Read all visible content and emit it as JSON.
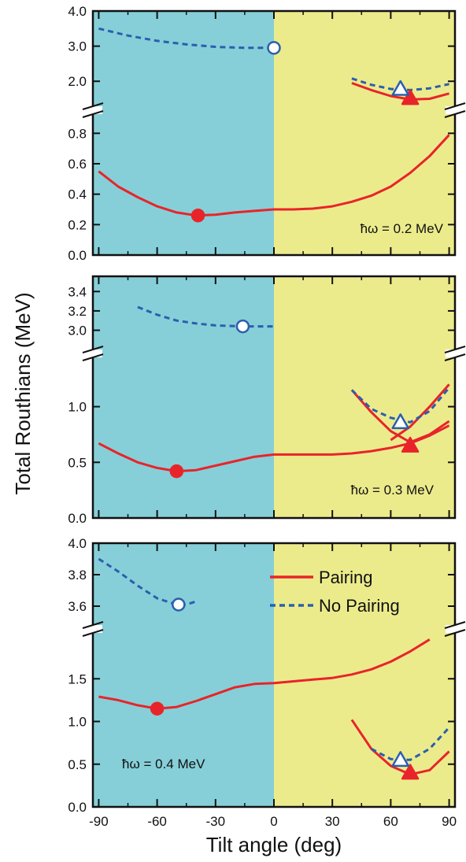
{
  "chart_data": {
    "type": "line",
    "ylabel": "Total Routhians (MeV)",
    "xlabel": "Tilt angle (deg)",
    "x_ticks": [
      "-90",
      "-60",
      "-30",
      "0",
      "30",
      "60",
      "90"
    ],
    "xlim": [
      -93,
      93
    ],
    "regions": [
      {
        "x_from": -93,
        "x_to": 0,
        "color": "#86cfd8"
      },
      {
        "x_from": 0,
        "x_to": 93,
        "color": "#eceb8c"
      }
    ],
    "colors": {
      "pairing": "#e8242a",
      "no_pairing": "#2b5fae"
    },
    "legend": {
      "placement": "top-right (bottom panel)",
      "entries": [
        "Pairing",
        "No Pairing"
      ]
    },
    "panels": [
      {
        "annotation": "ħω = 0.2 MeV",
        "upper": {
          "ylim": [
            1.4,
            4.0
          ],
          "ticks": [
            "4.0",
            "3.0",
            "2.0"
          ],
          "tick_values": [
            4.0,
            3.0,
            2.0
          ]
        },
        "lower": {
          "ylim": [
            0.0,
            0.9
          ],
          "ticks": [
            "0.8",
            "0.6",
            "0.4",
            "0.2",
            "0.0"
          ],
          "tick_values": [
            0.8,
            0.6,
            0.4,
            0.2,
            0.0
          ]
        },
        "series": [
          {
            "style": "pairing",
            "segment": "lower",
            "x": [
              -90,
              -80,
              -70,
              -60,
              -50,
              -40,
              -30,
              -20,
              -10,
              0,
              10,
              20,
              30,
              40,
              50,
              60,
              70,
              80,
              90
            ],
            "y": [
              0.55,
              0.45,
              0.38,
              0.32,
              0.28,
              0.26,
              0.265,
              0.28,
              0.29,
              0.3,
              0.3,
              0.305,
              0.32,
              0.35,
              0.39,
              0.45,
              0.54,
              0.65,
              0.79
            ]
          },
          {
            "style": "pairing",
            "segment": "upper",
            "x": [
              40,
              50,
              60,
              70,
              80,
              90
            ],
            "y": [
              1.95,
              1.75,
              1.58,
              1.48,
              1.5,
              1.65
            ]
          },
          {
            "style": "no_pairing",
            "segment": "upper",
            "x": [
              -90,
              -75,
              -60,
              -45,
              -30,
              -15,
              0
            ],
            "y": [
              3.5,
              3.3,
              3.15,
              3.05,
              2.98,
              2.95,
              2.95
            ]
          },
          {
            "style": "no_pairing",
            "segment": "upper",
            "x": [
              40,
              50,
              60,
              70,
              80,
              90
            ],
            "y": [
              2.08,
              1.9,
              1.78,
              1.75,
              1.8,
              1.92
            ]
          }
        ],
        "markers": [
          {
            "shape": "circle",
            "filled": true,
            "style": "pairing",
            "segment": "lower",
            "x": -39,
            "y": 0.26
          },
          {
            "shape": "triangle",
            "filled": true,
            "style": "pairing",
            "segment": "upper",
            "x": 70,
            "y": 1.52
          },
          {
            "shape": "circle",
            "filled": false,
            "style": "no_pairing",
            "segment": "upper",
            "x": 0,
            "y": 2.95
          },
          {
            "shape": "triangle",
            "filled": false,
            "style": "no_pairing",
            "segment": "upper",
            "x": 65,
            "y": 1.78
          }
        ]
      },
      {
        "annotation": "ħω = 0.3 MeV",
        "upper": {
          "ylim": [
            2.85,
            3.5
          ],
          "ticks": [
            "3.4",
            "3.2",
            "3.0"
          ],
          "tick_values": [
            3.4,
            3.2,
            3.0
          ]
        },
        "lower": {
          "ylim": [
            0.0,
            1.4
          ],
          "ticks": [
            "1.0",
            "0.5",
            "0.0"
          ],
          "tick_values": [
            1.0,
            0.5,
            0.0
          ]
        },
        "series": [
          {
            "style": "pairing",
            "segment": "lower",
            "x": [
              -90,
              -80,
              -70,
              -60,
              -50,
              -40,
              -30,
              -20,
              -10,
              0,
              10,
              20,
              30,
              40,
              50,
              60,
              70,
              80,
              90
            ],
            "y": [
              0.67,
              0.58,
              0.5,
              0.45,
              0.42,
              0.43,
              0.47,
              0.51,
              0.55,
              0.57,
              0.57,
              0.57,
              0.57,
              0.58,
              0.6,
              0.63,
              0.67,
              0.74,
              0.83
            ]
          },
          {
            "style": "pairing",
            "segment": "lower",
            "x": [
              40,
              50,
              60,
              70,
              80,
              90
            ],
            "y": [
              1.15,
              0.95,
              0.78,
              0.68,
              0.75,
              0.87
            ]
          },
          {
            "style": "pairing",
            "segment": "lower",
            "x": [
              60,
              70,
              80,
              90
            ],
            "y": [
              0.7,
              0.82,
              1.0,
              1.2
            ]
          },
          {
            "style": "no_pairing",
            "segment": "upper",
            "x": [
              -70,
              -60,
              -50,
              -40,
              -30,
              -15,
              0
            ],
            "y": [
              3.24,
              3.16,
              3.1,
              3.07,
              3.05,
              3.04,
              3.04
            ]
          },
          {
            "style": "no_pairing",
            "segment": "lower",
            "x": [
              40,
              50,
              60,
              70,
              80,
              90
            ],
            "y": [
              1.15,
              0.98,
              0.9,
              0.86,
              0.96,
              1.17
            ]
          }
        ],
        "markers": [
          {
            "shape": "circle",
            "filled": true,
            "style": "pairing",
            "segment": "lower",
            "x": -50,
            "y": 0.42
          },
          {
            "shape": "triangle",
            "filled": true,
            "style": "pairing",
            "segment": "lower",
            "x": 70,
            "y": 0.65
          },
          {
            "shape": "circle",
            "filled": false,
            "style": "no_pairing",
            "segment": "upper",
            "x": -16,
            "y": 3.04
          },
          {
            "shape": "triangle",
            "filled": false,
            "style": "no_pairing",
            "segment": "lower",
            "x": 65,
            "y": 0.86
          }
        ]
      },
      {
        "annotation": "ħω = 0.4 MeV",
        "upper": {
          "ylim": [
            3.5,
            4.0
          ],
          "ticks": [
            "4.0",
            "3.8",
            "3.6"
          ],
          "tick_values": [
            4.0,
            3.8,
            3.6
          ]
        },
        "lower": {
          "ylim": [
            0.0,
            2.0
          ],
          "ticks": [
            "1.5",
            "1.0",
            "0.5",
            "0.0"
          ],
          "tick_values": [
            1.5,
            1.0,
            0.5,
            0.0
          ]
        },
        "series": [
          {
            "style": "pairing",
            "segment": "lower",
            "x": [
              -90,
              -80,
              -70,
              -60,
              -50,
              -40,
              -30,
              -20,
              -10,
              0,
              10,
              20,
              30,
              40,
              50,
              60,
              70,
              80
            ],
            "y": [
              1.29,
              1.25,
              1.19,
              1.15,
              1.17,
              1.24,
              1.32,
              1.4,
              1.44,
              1.45,
              1.47,
              1.49,
              1.51,
              1.55,
              1.61,
              1.7,
              1.82,
              1.96
            ]
          },
          {
            "style": "pairing",
            "segment": "lower",
            "x": [
              40,
              50,
              60,
              70,
              80,
              90
            ],
            "y": [
              1.02,
              0.68,
              0.48,
              0.38,
              0.43,
              0.65
            ]
          },
          {
            "style": "no_pairing",
            "segment": "upper",
            "x": [
              -90,
              -80,
              -70,
              -60,
              -50,
              -45,
              -40
            ],
            "y": [
              3.9,
              3.82,
              3.73,
              3.65,
              3.61,
              3.61,
              3.63
            ]
          },
          {
            "style": "no_pairing",
            "segment": "lower",
            "x": [
              50,
              60,
              70,
              80,
              90
            ],
            "y": [
              0.68,
              0.56,
              0.55,
              0.68,
              0.93
            ]
          }
        ],
        "markers": [
          {
            "shape": "circle",
            "filled": true,
            "style": "pairing",
            "segment": "lower",
            "x": -60,
            "y": 1.15
          },
          {
            "shape": "triangle",
            "filled": true,
            "style": "pairing",
            "segment": "lower",
            "x": 70,
            "y": 0.4
          },
          {
            "shape": "circle",
            "filled": false,
            "style": "no_pairing",
            "segment": "upper",
            "x": -49,
            "y": 3.61
          },
          {
            "shape": "triangle",
            "filled": false,
            "style": "no_pairing",
            "segment": "lower",
            "x": 65,
            "y": 0.55
          }
        ]
      }
    ]
  }
}
